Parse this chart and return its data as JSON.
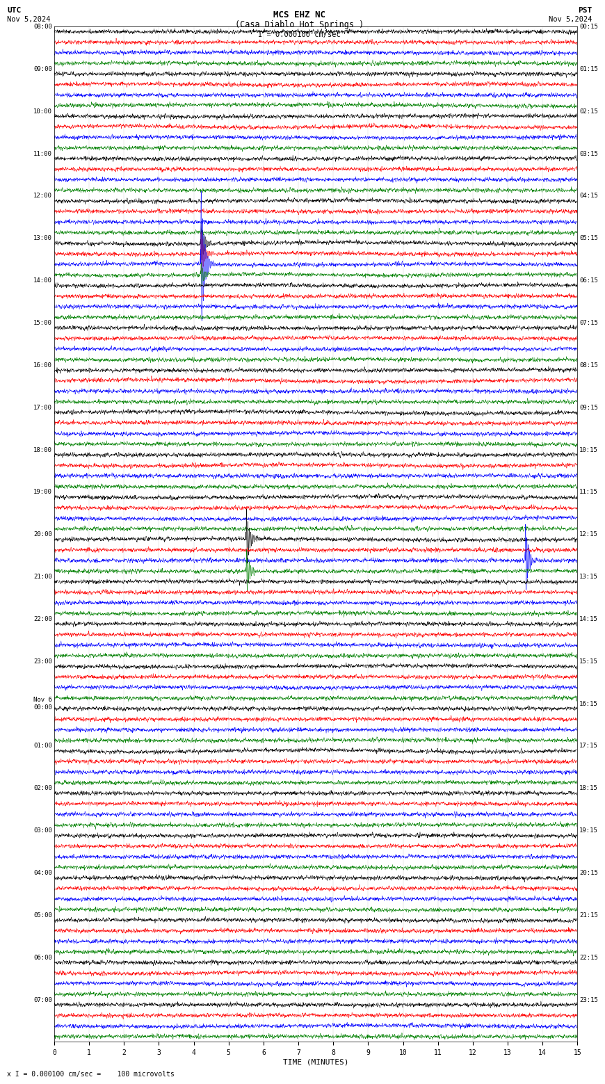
{
  "title_line1": "MCS EHZ NC",
  "title_line2": "(Casa Diablo Hot Springs )",
  "scale_label": "I = 0.000100 cm/sec",
  "utc_label": "UTC",
  "pst_label": "PST",
  "date_left": "Nov 5,2024",
  "date_right": "Nov 5,2024",
  "footer": "x I = 0.000100 cm/sec =    100 microvolts",
  "xlabel": "TIME (MINUTES)",
  "left_times": [
    "08:00",
    "09:00",
    "10:00",
    "11:00",
    "12:00",
    "13:00",
    "14:00",
    "15:00",
    "16:00",
    "17:00",
    "18:00",
    "19:00",
    "20:00",
    "21:00",
    "22:00",
    "23:00",
    "Nov 6\n00:00",
    "01:00",
    "02:00",
    "03:00",
    "04:00",
    "05:00",
    "06:00",
    "07:00"
  ],
  "right_times": [
    "00:15",
    "01:15",
    "02:15",
    "03:15",
    "04:15",
    "05:15",
    "06:15",
    "07:15",
    "08:15",
    "09:15",
    "10:15",
    "11:15",
    "12:15",
    "13:15",
    "14:15",
    "15:15",
    "16:15",
    "17:15",
    "18:15",
    "19:15",
    "20:15",
    "21:15",
    "22:15",
    "23:15"
  ],
  "colors": [
    "black",
    "red",
    "blue",
    "green"
  ],
  "n_rows": 24,
  "n_traces_per_row": 4,
  "minutes": 15,
  "background_color": "white",
  "line_width": 0.35,
  "noise_amplitude": 0.032,
  "n_pts": 3000,
  "event_rows_cols_times_amps": [
    [
      5,
      2,
      4.2,
      5.0
    ],
    [
      5,
      0,
      4.2,
      1.5
    ],
    [
      5,
      1,
      4.2,
      1.5
    ],
    [
      5,
      3,
      4.2,
      0.8
    ],
    [
      12,
      0,
      5.5,
      2.0
    ],
    [
      12,
      3,
      5.5,
      1.5
    ],
    [
      12,
      2,
      13.5,
      2.5
    ]
  ]
}
